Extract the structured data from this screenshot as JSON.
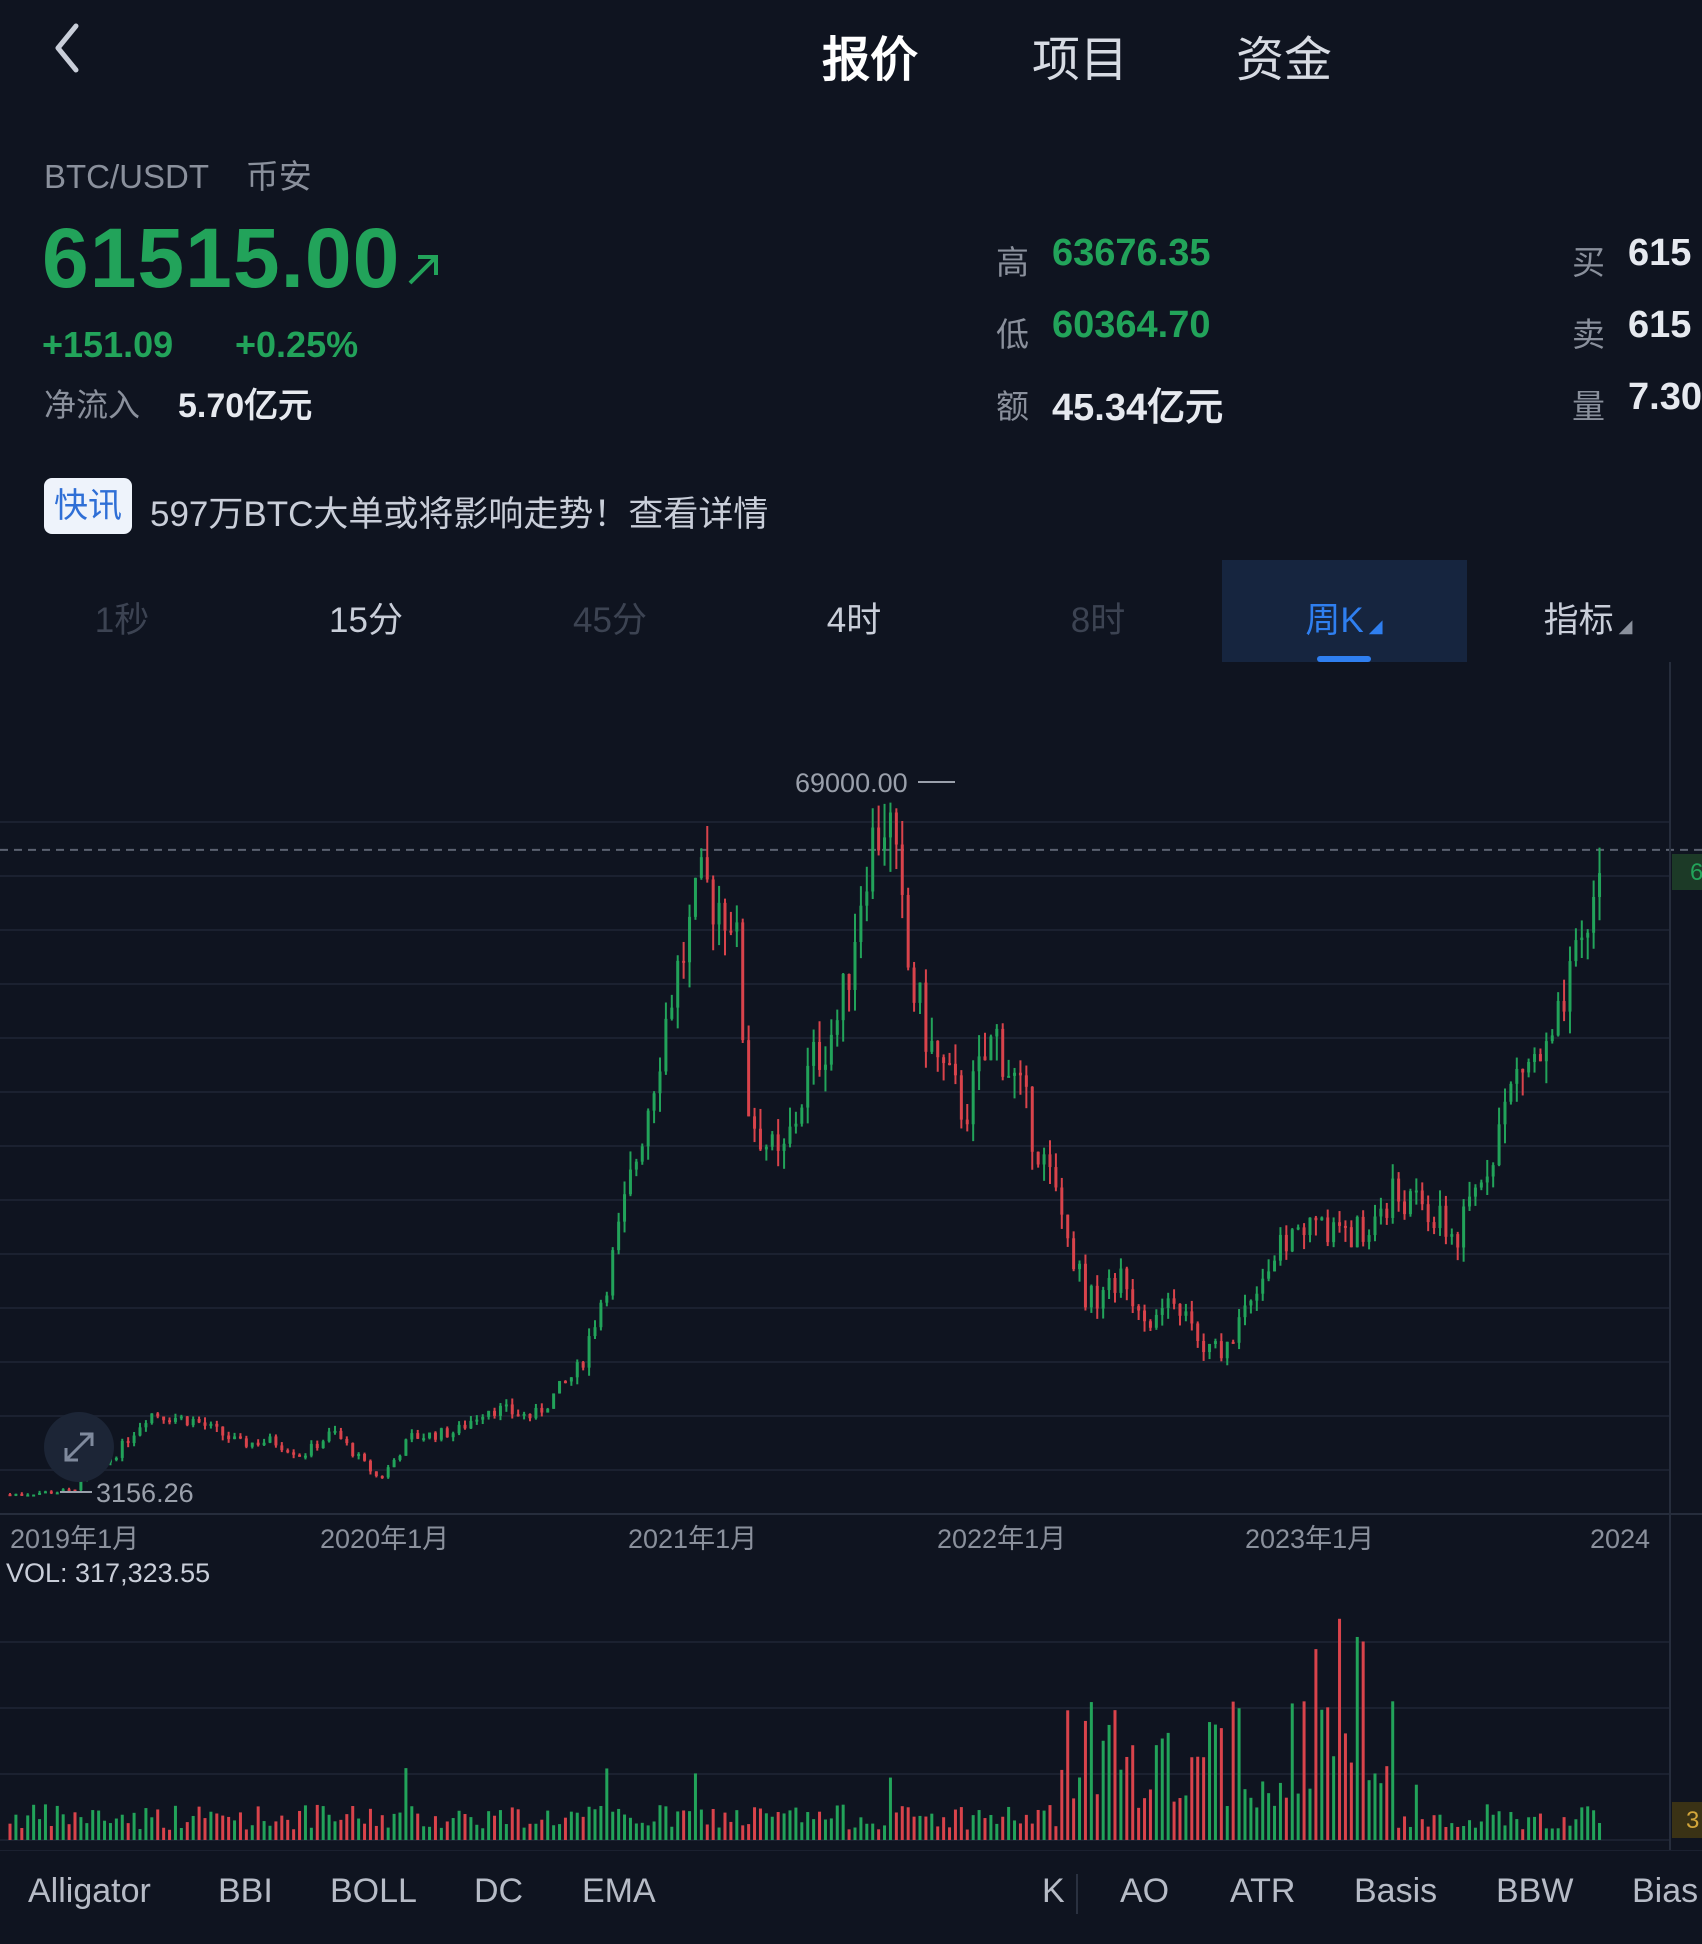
{
  "header": {
    "tabs": [
      {
        "label": "报价",
        "active": true
      },
      {
        "label": "项目",
        "active": false
      },
      {
        "label": "资金",
        "active": false
      }
    ]
  },
  "quote": {
    "pair": "BTC/USDT",
    "exchange": "币安",
    "price": "61515.00",
    "change_abs": "+151.09",
    "change_pct": "+0.25%",
    "netflow_label": "净流入",
    "netflow_value": "5.70亿元",
    "stats": [
      {
        "label": "高",
        "value": "63676.35",
        "color": "#22a35a"
      },
      {
        "label": "低",
        "value": "60364.70",
        "color": "#22a35a"
      },
      {
        "label": "额",
        "value": "45.34亿元",
        "color": "#e6e9ef"
      }
    ],
    "stats_right": [
      {
        "label": "买",
        "value": "615"
      },
      {
        "label": "卖",
        "value": "615"
      },
      {
        "label": "量",
        "value": "7.30"
      }
    ]
  },
  "news": {
    "tag": "快讯",
    "text": "597万BTC大单或将影响走势！查看详情"
  },
  "periods": [
    {
      "label": "1秒",
      "style": "dim"
    },
    {
      "label": "15分",
      "style": "norm"
    },
    {
      "label": "45分",
      "style": "dim"
    },
    {
      "label": "4时",
      "style": "norm"
    },
    {
      "label": "8时",
      "style": "dim"
    },
    {
      "label": "周K",
      "style": "active"
    },
    {
      "label": "指标",
      "style": "norm"
    }
  ],
  "chart_data": {
    "type": "candlestick",
    "x_tick_labels": [
      "2019年1月",
      "2020年1月",
      "2021年1月",
      "2022年1月",
      "2023年1月",
      "2024"
    ],
    "max_label": "69000.00",
    "min_label": "3156.26",
    "current_price_line": 61515.0,
    "volume_label": "VOL: 317,323.55",
    "right_price_tag": "6",
    "right_volume_tag": "3",
    "colors": {
      "up": "#22a35a",
      "down": "#d9434b",
      "grid": "#1b2130"
    },
    "weekly_close_approx": [
      [
        2019.0,
        3700
      ],
      [
        2019.2,
        4000
      ],
      [
        2019.35,
        7500
      ],
      [
        2019.45,
        11000
      ],
      [
        2019.6,
        10300
      ],
      [
        2019.75,
        8200
      ],
      [
        2019.85,
        8500
      ],
      [
        2019.95,
        7200
      ],
      [
        2020.05,
        9300
      ],
      [
        2020.2,
        5000
      ],
      [
        2020.3,
        8800
      ],
      [
        2020.45,
        9300
      ],
      [
        2020.55,
        11500
      ],
      [
        2020.7,
        10600
      ],
      [
        2020.85,
        15000
      ],
      [
        2020.95,
        24000
      ],
      [
        2021.05,
        36000
      ],
      [
        2021.15,
        49000
      ],
      [
        2021.25,
        58000
      ],
      [
        2021.35,
        56000
      ],
      [
        2021.4,
        38000
      ],
      [
        2021.5,
        33000
      ],
      [
        2021.6,
        42000
      ],
      [
        2021.7,
        47000
      ],
      [
        2021.78,
        61000
      ],
      [
        2021.85,
        65000
      ],
      [
        2021.92,
        50000
      ],
      [
        2022.0,
        43000
      ],
      [
        2022.1,
        38000
      ],
      [
        2022.2,
        45000
      ],
      [
        2022.3,
        38000
      ],
      [
        2022.4,
        30000
      ],
      [
        2022.5,
        21000
      ],
      [
        2022.6,
        23000
      ],
      [
        2022.7,
        19500
      ],
      [
        2022.8,
        20500
      ],
      [
        2022.87,
        16500
      ],
      [
        2022.95,
        16800
      ],
      [
        2023.05,
        23000
      ],
      [
        2023.2,
        28000
      ],
      [
        2023.35,
        27000
      ],
      [
        2023.5,
        30500
      ],
      [
        2023.6,
        29000
      ],
      [
        2023.7,
        26500
      ],
      [
        2023.8,
        34000
      ],
      [
        2023.9,
        42000
      ],
      [
        2024.0,
        43000
      ],
      [
        2024.1,
        52000
      ],
      [
        2024.18,
        61515
      ]
    ]
  },
  "indicators": [
    "Alligator",
    "BBI",
    "BOLL",
    "DC",
    "EMA",
    "K",
    "AO",
    "ATR",
    "Basis",
    "BBW",
    "Bias"
  ]
}
